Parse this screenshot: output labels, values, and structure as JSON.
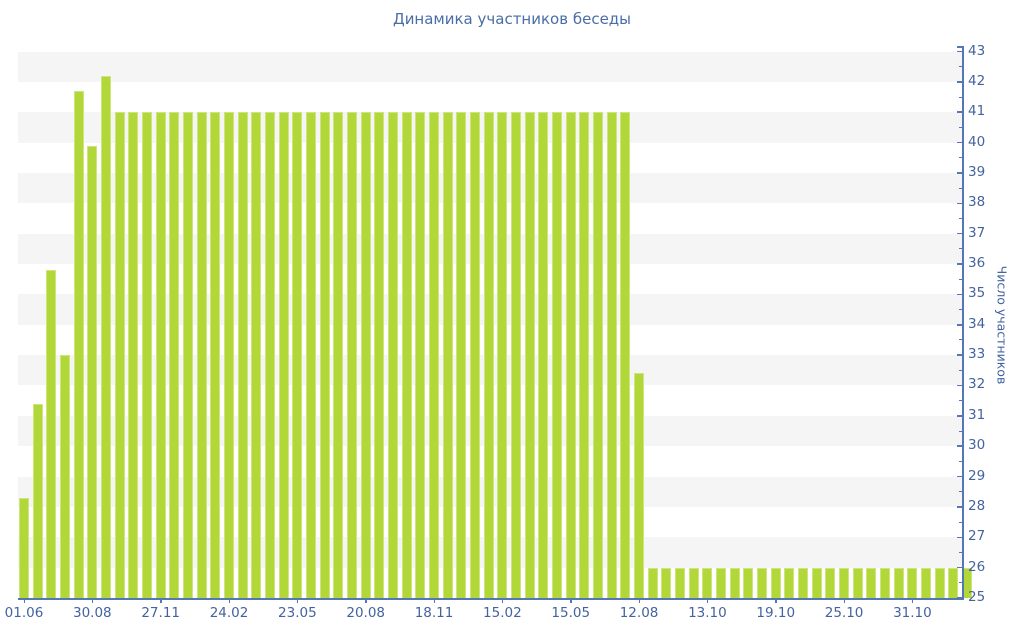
{
  "chart_data": {
    "type": "bar",
    "title": "Динамика участников беседы",
    "ylabel": "Число участников",
    "xlabel": "",
    "ylim": [
      25,
      43
    ],
    "y_tick_step": 1,
    "y_minor_tick_step": 0.5,
    "legend": null,
    "grid": "alternating-horizontal-stripes",
    "x_tick_every_n_bars": 5,
    "x_tick_labels": [
      "01.06",
      "30.08",
      "27.11",
      "24.02",
      "23.05",
      "20.08",
      "18.11",
      "15.02",
      "15.05",
      "12.08",
      "13.10",
      "19.10",
      "25.10",
      "31.10"
    ],
    "values": [
      28.3,
      31.4,
      35.8,
      33,
      41.7,
      39.9,
      42.2,
      41,
      41,
      41,
      41,
      41,
      41,
      41,
      41,
      41,
      41,
      41,
      41,
      41,
      41,
      41,
      41,
      41,
      41,
      41,
      41,
      41,
      41,
      41,
      41,
      41,
      41,
      41,
      41,
      41,
      41,
      41,
      41,
      41,
      41,
      41,
      41,
      41,
      41,
      32.4,
      26,
      26,
      26,
      26,
      26,
      26,
      26,
      26,
      26,
      26,
      26,
      26,
      26,
      26,
      26,
      26,
      26,
      26,
      26,
      26,
      26,
      26,
      26,
      26
    ],
    "colors": {
      "bar": "#b2d739",
      "bar_edge": "#cde47f",
      "axis": "#5577b5",
      "tick_label": "#44639e",
      "title": "#4a6da7",
      "stripe": "#f5f5f6",
      "background": "#ffffff"
    }
  }
}
